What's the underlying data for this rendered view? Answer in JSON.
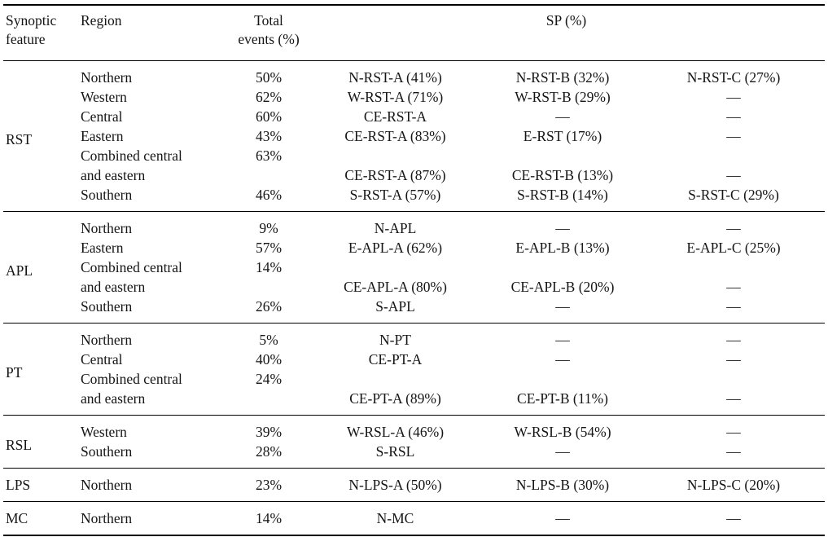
{
  "colors": {
    "background": "#ffffff",
    "text": "#151515",
    "rule": "#000000"
  },
  "table": {
    "headers": {
      "feature": "Synoptic\nfeature",
      "region": "Region",
      "total": "Total\nevents (%)",
      "sp": "SP (%)"
    },
    "empty_marker": "—",
    "groups": [
      {
        "feature": "RST",
        "rows": [
          {
            "region": "Northern",
            "total": "50%",
            "sp": [
              "N-RST-A (41%)",
              "N-RST-B (32%)",
              "N-RST-C (27%)"
            ]
          },
          {
            "region": "Western",
            "total": "62%",
            "sp": [
              "W-RST-A (71%)",
              "W-RST-B (29%)",
              "—"
            ]
          },
          {
            "region": "Central",
            "total": "60%",
            "sp": [
              "CE-RST-A",
              "—",
              "—"
            ]
          },
          {
            "region": "Eastern",
            "total": "43%",
            "sp": [
              "CE-RST-A (83%)",
              "E-RST (17%)",
              "—"
            ]
          },
          {
            "region": "Combined central",
            "total": "63%",
            "sp": [
              "",
              "",
              ""
            ]
          },
          {
            "region": "and eastern",
            "total": "",
            "sp": [
              "CE-RST-A (87%)",
              "CE-RST-B (13%)",
              "—"
            ]
          },
          {
            "region": "Southern",
            "total": "46%",
            "sp": [
              "S-RST-A (57%)",
              "S-RST-B (14%)",
              "S-RST-C (29%)"
            ]
          }
        ]
      },
      {
        "feature": "APL",
        "rows": [
          {
            "region": "Northern",
            "total": "9%",
            "sp": [
              "N-APL",
              "—",
              "—"
            ]
          },
          {
            "region": "Eastern",
            "total": "57%",
            "sp": [
              "E-APL-A (62%)",
              "E-APL-B (13%)",
              "E-APL-C (25%)"
            ]
          },
          {
            "region": "Combined central",
            "total": "14%",
            "sp": [
              "",
              "",
              ""
            ]
          },
          {
            "region": "and eastern",
            "total": "",
            "sp": [
              "CE-APL-A (80%)",
              "CE-APL-B (20%)",
              "—"
            ]
          },
          {
            "region": "Southern",
            "total": "26%",
            "sp": [
              "S-APL",
              "—",
              "—"
            ]
          }
        ]
      },
      {
        "feature": "PT",
        "rows": [
          {
            "region": "Northern",
            "total": "5%",
            "sp": [
              "N-PT",
              "—",
              "—"
            ]
          },
          {
            "region": "Central",
            "total": "40%",
            "sp": [
              "CE-PT-A",
              "—",
              "—"
            ]
          },
          {
            "region": "Combined central",
            "total": "24%",
            "sp": [
              "",
              "",
              ""
            ]
          },
          {
            "region": "and eastern",
            "total": "",
            "sp": [
              "CE-PT-A (89%)",
              "CE-PT-B (11%)",
              "—"
            ]
          }
        ]
      },
      {
        "feature": "RSL",
        "rows": [
          {
            "region": "Western",
            "total": "39%",
            "sp": [
              "W-RSL-A (46%)",
              "W-RSL-B (54%)",
              "—"
            ]
          },
          {
            "region": "Southern",
            "total": "28%",
            "sp": [
              "S-RSL",
              "—",
              "—"
            ]
          }
        ]
      },
      {
        "feature": "LPS",
        "rows": [
          {
            "region": "Northern",
            "total": "23%",
            "sp": [
              "N-LPS-A (50%)",
              "N-LPS-B (30%)",
              "N-LPS-C (20%)"
            ]
          }
        ]
      },
      {
        "feature": "MC",
        "rows": [
          {
            "region": "Northern",
            "total": "14%",
            "sp": [
              "N-MC",
              "—",
              "—"
            ]
          }
        ]
      }
    ]
  }
}
